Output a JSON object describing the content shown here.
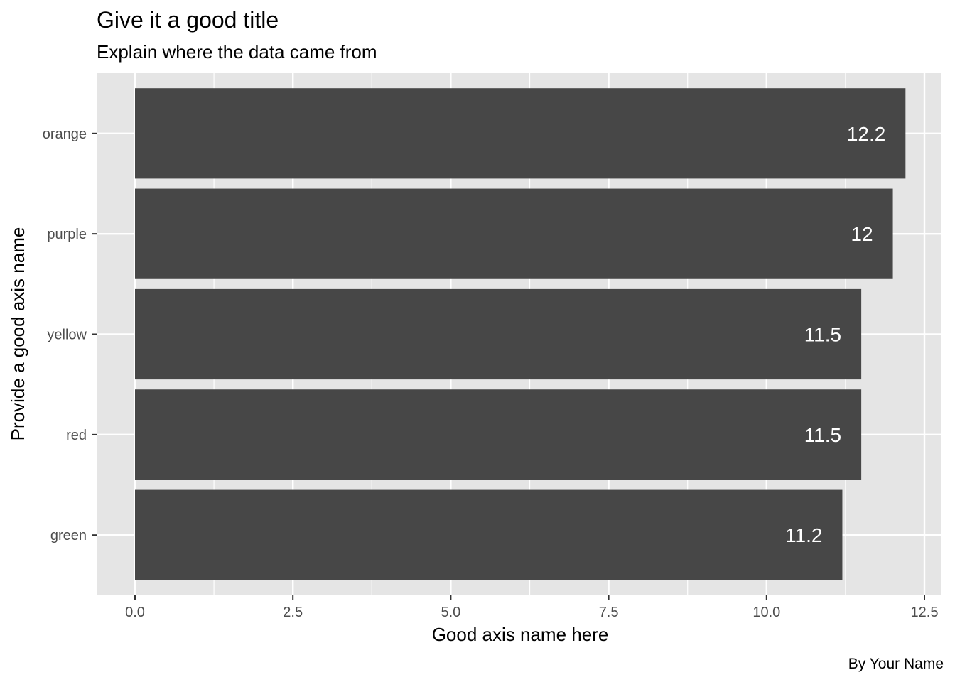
{
  "chart_data": {
    "type": "bar",
    "orientation": "horizontal",
    "title": "Give it a good title",
    "subtitle": "Explain where the data came from",
    "xlabel": "Good axis name here",
    "ylabel": "Provide a good axis name",
    "caption": "By Your Name",
    "categories": [
      "orange",
      "purple",
      "yellow",
      "red",
      "green"
    ],
    "values": [
      12.2,
      12,
      11.5,
      11.5,
      11.2
    ],
    "data_labels": [
      "12.2",
      "12",
      "11.5",
      "11.5",
      "11.2"
    ],
    "xlim": [
      -0.6,
      12.6
    ],
    "x_ticks": [
      0.0,
      2.5,
      5.0,
      7.5,
      10.0,
      12.5
    ],
    "x_tick_labels": [
      "0.0",
      "2.5",
      "5.0",
      "7.5",
      "10.0",
      "12.5"
    ],
    "x_minor_ticks": [
      1.25,
      3.75,
      6.25,
      8.75,
      11.25
    ],
    "grid": true,
    "legend": "none",
    "colors": {
      "panel_background": "#e5e5e5",
      "grid": "#ffffff",
      "bar": "#474747",
      "data_label": "#ffffff",
      "tick_label": "#4d4d4d",
      "tick_mark": "#333333"
    }
  }
}
